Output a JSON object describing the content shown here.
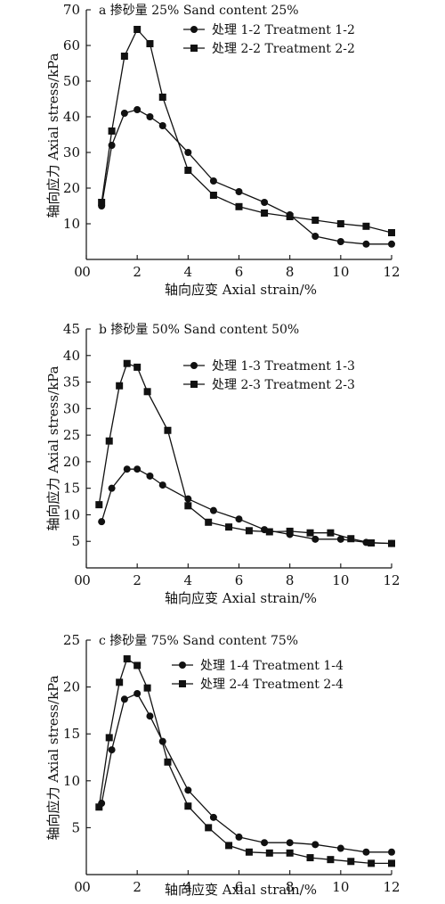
{
  "chart_data": [
    {
      "type": "line",
      "title": "a 掺砂量 25% Sand content 25%",
      "xlabel": "轴向应变 Axial strain/%",
      "ylabel": "轴向应力 Axial stress/kPa",
      "xlim": [
        0,
        12
      ],
      "ylim": [
        0,
        70
      ],
      "xticks": [
        0,
        2,
        4,
        6,
        8,
        10,
        12
      ],
      "yticks": [
        10,
        20,
        30,
        40,
        50,
        60,
        70
      ],
      "grid": false,
      "legend_position": "top-right",
      "series": [
        {
          "name": "处理 1-2 Treatment 1-2",
          "marker": "circle",
          "x": [
            0.6,
            1.0,
            1.5,
            2.0,
            2.5,
            3.0,
            4.0,
            5.0,
            6.0,
            7.0,
            8.0,
            9.0,
            10.0,
            11.0,
            12.0
          ],
          "y": [
            15.0,
            32.0,
            41.0,
            42.0,
            40.0,
            37.5,
            30.0,
            22.0,
            19.0,
            16.0,
            12.5,
            6.5,
            5.0,
            4.3,
            4.3
          ]
        },
        {
          "name": "处理 2-2 Treatment 2-2",
          "marker": "square",
          "x": [
            0.6,
            1.0,
            1.5,
            2.0,
            2.5,
            3.0,
            4.0,
            5.0,
            6.0,
            7.0,
            8.0,
            9.0,
            10.0,
            11.0,
            12.0
          ],
          "y": [
            16.0,
            36.0,
            57.0,
            64.5,
            60.5,
            45.5,
            25.0,
            18.0,
            14.8,
            13.0,
            12.0,
            11.0,
            10.0,
            9.3,
            7.5
          ]
        }
      ]
    },
    {
      "type": "line",
      "title": "b 掺砂量 50% Sand content 50%",
      "xlabel": "轴向应变 Axial strain/%",
      "ylabel": "轴向应力 Axial stress/kPa",
      "xlim": [
        0,
        12
      ],
      "ylim": [
        0,
        45
      ],
      "xticks": [
        0,
        2,
        4,
        6,
        8,
        10,
        12
      ],
      "yticks": [
        5,
        10,
        15,
        20,
        25,
        30,
        35,
        40,
        45
      ],
      "grid": false,
      "legend_position": "top-right",
      "series": [
        {
          "name": "处理 1-3 Treatment 1-3",
          "marker": "circle",
          "x": [
            0.6,
            1.0,
            1.6,
            2.0,
            2.5,
            3.0,
            4.0,
            5.0,
            6.0,
            7.0,
            8.0,
            9.0,
            10.0,
            11.0,
            12.0
          ],
          "y": [
            8.7,
            15.0,
            18.6,
            18.6,
            17.3,
            15.6,
            13.0,
            10.8,
            9.2,
            7.2,
            6.3,
            5.4,
            5.4,
            4.8,
            4.6
          ]
        },
        {
          "name": "处理 2-3 Treatment 2-3",
          "marker": "square",
          "x": [
            0.5,
            0.9,
            1.3,
            1.6,
            2.0,
            2.4,
            3.2,
            4.0,
            4.8,
            5.6,
            6.4,
            7.2,
            8.0,
            8.8,
            9.6,
            10.4,
            11.2,
            12.0
          ],
          "y": [
            11.9,
            23.9,
            34.3,
            38.5,
            37.8,
            33.2,
            25.9,
            11.7,
            8.6,
            7.7,
            7.0,
            6.8,
            6.9,
            6.6,
            6.6,
            5.5,
            4.7,
            4.6
          ]
        }
      ]
    },
    {
      "type": "line",
      "title": "c 掺砂量 75% Sand content 75%",
      "xlabel": "轴向应变 Axial strain/%",
      "ylabel": "轴向应力 Axial stress/kPa",
      "xlim": [
        0,
        12
      ],
      "ylim": [
        0,
        25
      ],
      "xticks": [
        0,
        2,
        4,
        6,
        8,
        10,
        12
      ],
      "yticks": [
        5,
        10,
        15,
        20,
        25
      ],
      "grid": false,
      "legend_position": "top-right",
      "series": [
        {
          "name": "处理 1-4 Treatment 1-4",
          "marker": "circle",
          "x": [
            0.6,
            1.0,
            1.5,
            2.0,
            2.5,
            3.0,
            4.0,
            5.0,
            6.0,
            7.0,
            8.0,
            9.0,
            10.0,
            11.0,
            12.0
          ],
          "y": [
            7.6,
            13.3,
            18.7,
            19.3,
            16.9,
            14.2,
            9.0,
            6.1,
            4.0,
            3.4,
            3.4,
            3.2,
            2.8,
            2.4,
            2.4
          ]
        },
        {
          "name": "处理 2-4 Treatment 2-4",
          "marker": "square",
          "x": [
            0.5,
            0.9,
            1.3,
            1.6,
            2.0,
            2.4,
            3.2,
            4.0,
            4.8,
            5.6,
            6.4,
            7.2,
            8.0,
            8.8,
            9.6,
            10.4,
            11.2,
            12.0
          ],
          "y": [
            7.2,
            14.6,
            20.5,
            23.0,
            22.3,
            19.9,
            12.0,
            7.3,
            5.0,
            3.1,
            2.4,
            2.3,
            2.3,
            1.8,
            1.6,
            1.4,
            1.2,
            1.2
          ]
        }
      ]
    }
  ]
}
